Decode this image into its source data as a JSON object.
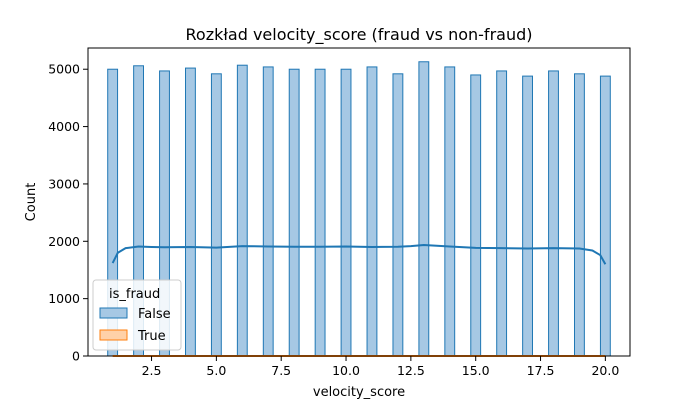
{
  "chart_data": {
    "type": "histogram",
    "title": "Rozkład velocity_score (fraud vs non-fraud)",
    "xlabel": "velocity_score",
    "ylabel": "Count",
    "xlim": [
      0.05,
      20.95
    ],
    "ylim": [
      0,
      5370
    ],
    "xticks": [
      2.5,
      5.0,
      7.5,
      10.0,
      12.5,
      15.0,
      17.5,
      20.0
    ],
    "xtick_labels": [
      "2.5",
      "5.0",
      "7.5",
      "10.0",
      "12.5",
      "15.0",
      "17.5",
      "20.0"
    ],
    "yticks": [
      0,
      1000,
      2000,
      3000,
      4000,
      5000
    ],
    "ytick_labels": [
      "0",
      "1000",
      "2000",
      "3000",
      "4000",
      "5000"
    ],
    "bin_width": 0.38,
    "grid": false,
    "legend": {
      "title": "is_fraud",
      "position": "lower-left"
    },
    "series": [
      {
        "name": "False",
        "color": "#1f77b4",
        "fill": "#a6c8e4",
        "x": [
          1,
          2,
          3,
          4,
          5,
          6,
          7,
          8,
          9,
          10,
          11,
          12,
          13,
          14,
          15,
          16,
          17,
          18,
          19,
          20
        ],
        "values": [
          5000,
          5060,
          4970,
          5020,
          4920,
          5070,
          5040,
          5000,
          5000,
          5000,
          5040,
          4920,
          5130,
          5040,
          4900,
          4970,
          4880,
          4970,
          4920,
          4880
        ]
      },
      {
        "name": "True",
        "color": "#ff7f0e",
        "fill": "#ffd1a8",
        "x": [
          1,
          2,
          3,
          4,
          5,
          6,
          7,
          8,
          9,
          10,
          11,
          12,
          13,
          14,
          15,
          16,
          17,
          18,
          19,
          20
        ],
        "values": [
          0,
          0,
          0,
          0,
          0,
          0,
          0,
          0,
          0,
          0,
          0,
          0,
          0,
          0,
          0,
          0,
          0,
          0,
          0,
          0
        ]
      }
    ],
    "kde": [
      {
        "series": "False",
        "color": "#1f77b4",
        "x": [
          1.0,
          1.2,
          1.5,
          2.0,
          2.5,
          3.0,
          4.0,
          5.0,
          6.0,
          7.0,
          8.0,
          9.0,
          10.0,
          11.0,
          12.0,
          12.5,
          13.0,
          14.0,
          15.0,
          16.0,
          17.0,
          18.0,
          19.0,
          19.5,
          19.8,
          20.0
        ],
        "y": [
          1620,
          1800,
          1880,
          1910,
          1900,
          1895,
          1900,
          1890,
          1915,
          1910,
          1905,
          1905,
          1910,
          1900,
          1905,
          1915,
          1935,
          1910,
          1885,
          1880,
          1875,
          1880,
          1875,
          1840,
          1760,
          1600
        ]
      },
      {
        "series": "True",
        "color": "#ff7f0e",
        "x": [
          1.0,
          20.0
        ],
        "y": [
          0,
          0
        ]
      }
    ]
  }
}
